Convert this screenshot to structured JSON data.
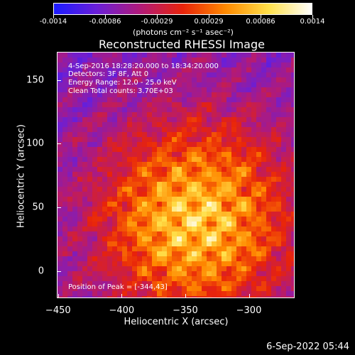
{
  "colorbar": {
    "tick_labels": [
      "-0.0014",
      "-0.00086",
      "-0.00029",
      "0.00029",
      "0.00086",
      "0.0014"
    ],
    "units": "(photons cm⁻² s⁻¹ asec⁻²)",
    "colors": [
      "#1b1bff",
      "#6a1fd8",
      "#b01a7a",
      "#e8230a",
      "#ff8a00",
      "#ffe04a",
      "#ffffff"
    ]
  },
  "title": "Reconstructed RHESSI Image",
  "info": {
    "time_range": "4-Sep-2016 18:28:20.000 to 18:34:20.000",
    "detectors": "Detectors: 3F 8F, Att 0",
    "energy_range": "Energy Range: 12.0 - 25.0 keV",
    "method_counts": "Clean     Total counts: 3.70E+03",
    "peak": "Position of Peak = [-344,43]"
  },
  "axes": {
    "xlabel": "Heliocentric X (arcsec)",
    "ylabel": "Heliocentric Y (arcsec)",
    "xticks": [
      "-450",
      "-400",
      "-350",
      "-300"
    ],
    "yticks": [
      "0",
      "50",
      "100",
      "150"
    ],
    "xlim": [
      -451,
      -264
    ],
    "ylim": [
      -21,
      172
    ]
  },
  "peak_position": [
    -344,
    43
  ],
  "footer_date": "6-Sep-2022 05:44"
}
